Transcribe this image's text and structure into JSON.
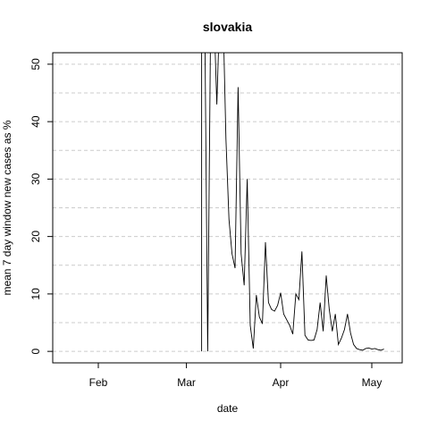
{
  "chart_data": {
    "type": "line",
    "title": "slovakia",
    "xlabel": "date",
    "ylabel": "mean  7  day window new cases as %",
    "x_ticks": [
      "Feb",
      "Mar",
      "Apr",
      "May"
    ],
    "y_ticks": [
      0,
      10,
      20,
      30,
      40,
      50
    ],
    "ylim": [
      -2,
      52
    ],
    "xlim": [
      "2020-01-17",
      "2020-05-11"
    ],
    "grid": "dashed horizontal",
    "line_color": "#000000",
    "series": [
      {
        "x": [
          "2020-03-06",
          "2020-03-06",
          "2020-03-07",
          "2020-03-08",
          "2020-03-09",
          "2020-03-10",
          "2020-03-11",
          "2020-03-12",
          "2020-03-13",
          "2020-03-14",
          "2020-03-15",
          "2020-03-16",
          "2020-03-17",
          "2020-03-18",
          "2020-03-19",
          "2020-03-20",
          "2020-03-21",
          "2020-03-22",
          "2020-03-23",
          "2020-03-24",
          "2020-03-25",
          "2020-03-26",
          "2020-03-27",
          "2020-03-28",
          "2020-03-29",
          "2020-03-30",
          "2020-03-31",
          "2020-04-01",
          "2020-04-02",
          "2020-04-03",
          "2020-04-04",
          "2020-04-05",
          "2020-04-06",
          "2020-04-07",
          "2020-04-08",
          "2020-04-09",
          "2020-04-10",
          "2020-04-11",
          "2020-04-12",
          "2020-04-13",
          "2020-04-14",
          "2020-04-15",
          "2020-04-16",
          "2020-04-17",
          "2020-04-18",
          "2020-04-19",
          "2020-04-20",
          "2020-04-21",
          "2020-04-22",
          "2020-04-23",
          "2020-04-24",
          "2020-04-25",
          "2020-04-26",
          "2020-04-27",
          "2020-04-28",
          "2020-04-29",
          "2020-04-30",
          "2020-05-01",
          "2020-05-02",
          "2020-05-03",
          "2020-05-04",
          "2020-05-05"
        ],
        "values": [
          0,
          60,
          60,
          0,
          60,
          60,
          43,
          60,
          60,
          37,
          23,
          17,
          14.5,
          46,
          17,
          11.5,
          30,
          4.5,
          0.5,
          9.8,
          6,
          4.8,
          19,
          8.5,
          7.3,
          7,
          8,
          10.2,
          6.5,
          5.5,
          4.5,
          3,
          10,
          9,
          17.4,
          2.8,
          2,
          1.9,
          2,
          3.8,
          8.5,
          3.5,
          13.2,
          7.3,
          3.5,
          6.5,
          1.2,
          2.3,
          3.8,
          6.5,
          3.2,
          1.2,
          0.5,
          0.3,
          0.2,
          0.5,
          0.6,
          0.4,
          0.5,
          0.3,
          0.2,
          0.4
        ]
      }
    ]
  }
}
